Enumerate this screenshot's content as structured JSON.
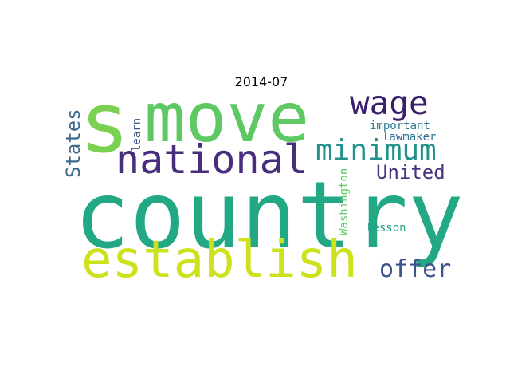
{
  "title": "2014-07",
  "words": [
    {
      "text": "country",
      "color": "#22a884"
    },
    {
      "text": "s",
      "color": "#7ad151"
    },
    {
      "text": "move",
      "color": "#5ec962"
    },
    {
      "text": "establish",
      "color": "#cde11d"
    },
    {
      "text": "national",
      "color": "#472d7b"
    },
    {
      "text": "wage",
      "color": "#3b1f6b"
    },
    {
      "text": "minimum",
      "color": "#21918c"
    },
    {
      "text": "United",
      "color": "#46327e"
    },
    {
      "text": "offer",
      "color": "#3b528b"
    },
    {
      "text": "States",
      "color": "#3e6a8c"
    },
    {
      "text": "learn",
      "color": "#39568c"
    },
    {
      "text": "important",
      "color": "#2a788e"
    },
    {
      "text": "lawmaker",
      "color": "#2c728e"
    },
    {
      "text": "Washington",
      "color": "#5ec962"
    },
    {
      "text": "lesson",
      "color": "#21a585"
    }
  ]
}
